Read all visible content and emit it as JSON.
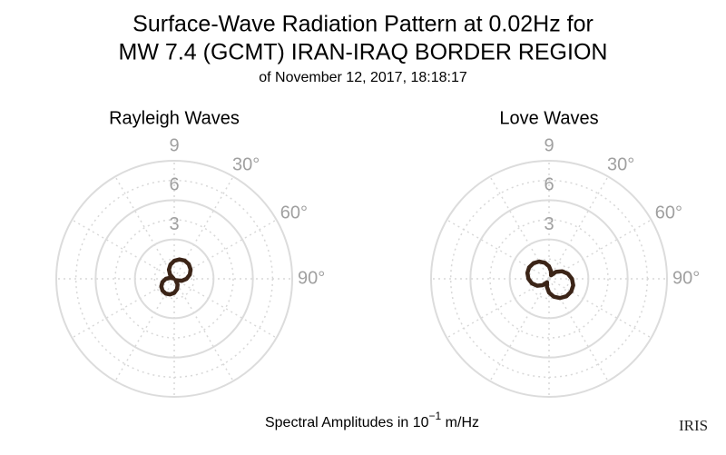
{
  "header": {
    "title_lines": [
      "Surface-Wave Radiation Pattern at 0.02Hz for",
      "MW 7.4 (GCMT) IRAN-IRAQ BORDER REGION"
    ],
    "subtitle": "of November 12, 2017, 18:18:17"
  },
  "caption": {
    "prefix": "Spectral Amplitudes in 10",
    "exponent": "−1",
    "suffix": " m/Hz"
  },
  "logo": "IRIS",
  "chart_data": [
    {
      "type": "polar",
      "title": "Rayleigh Waves",
      "color": "#3b2417",
      "theta": [
        0,
        15,
        30,
        45,
        60,
        75,
        90,
        105,
        120,
        135,
        150,
        165,
        180,
        195,
        210,
        225,
        240,
        255,
        270,
        285,
        300,
        315,
        330,
        345
      ],
      "values": [
        1.37,
        1.53,
        1.6,
        1.57,
        1.44,
        1.23,
        0.94,
        0.6,
        0.23,
        0.15,
        0.51,
        0.82,
        1.07,
        1.23,
        1.3,
        1.27,
        1.14,
        0.93,
        0.64,
        0.3,
        0.07,
        0.45,
        0.81,
        1.12
      ],
      "rlim": [
        0,
        9
      ],
      "rticks": [
        3,
        6,
        9
      ],
      "thetaticks": [
        {
          "value": 30,
          "label": "30°"
        },
        {
          "value": 60,
          "label": "60°"
        },
        {
          "value": 90,
          "label": "90°"
        }
      ]
    },
    {
      "type": "polar",
      "title": "Love Waves",
      "color": "#3b2417",
      "theta": [
        0,
        15,
        30,
        45,
        60,
        75,
        90,
        105,
        120,
        135,
        150,
        165,
        180,
        195,
        210,
        225,
        240,
        255,
        270,
        285,
        300,
        315,
        330,
        345
      ],
      "values": [
        0.95,
        0.59,
        0.31,
        0.75,
        1.15,
        1.49,
        1.75,
        1.91,
        1.95,
        1.88,
        1.69,
        1.41,
        1.05,
        0.63,
        0.3,
        0.69,
        1.05,
        1.35,
        1.57,
        1.71,
        1.75,
        1.68,
        1.52,
        1.27
      ],
      "rlim": [
        0,
        9
      ],
      "rticks": [
        3,
        6,
        9
      ],
      "thetaticks": [
        {
          "value": 30,
          "label": "30°"
        },
        {
          "value": 60,
          "label": "60°"
        },
        {
          "value": 90,
          "label": "90°"
        }
      ]
    }
  ]
}
